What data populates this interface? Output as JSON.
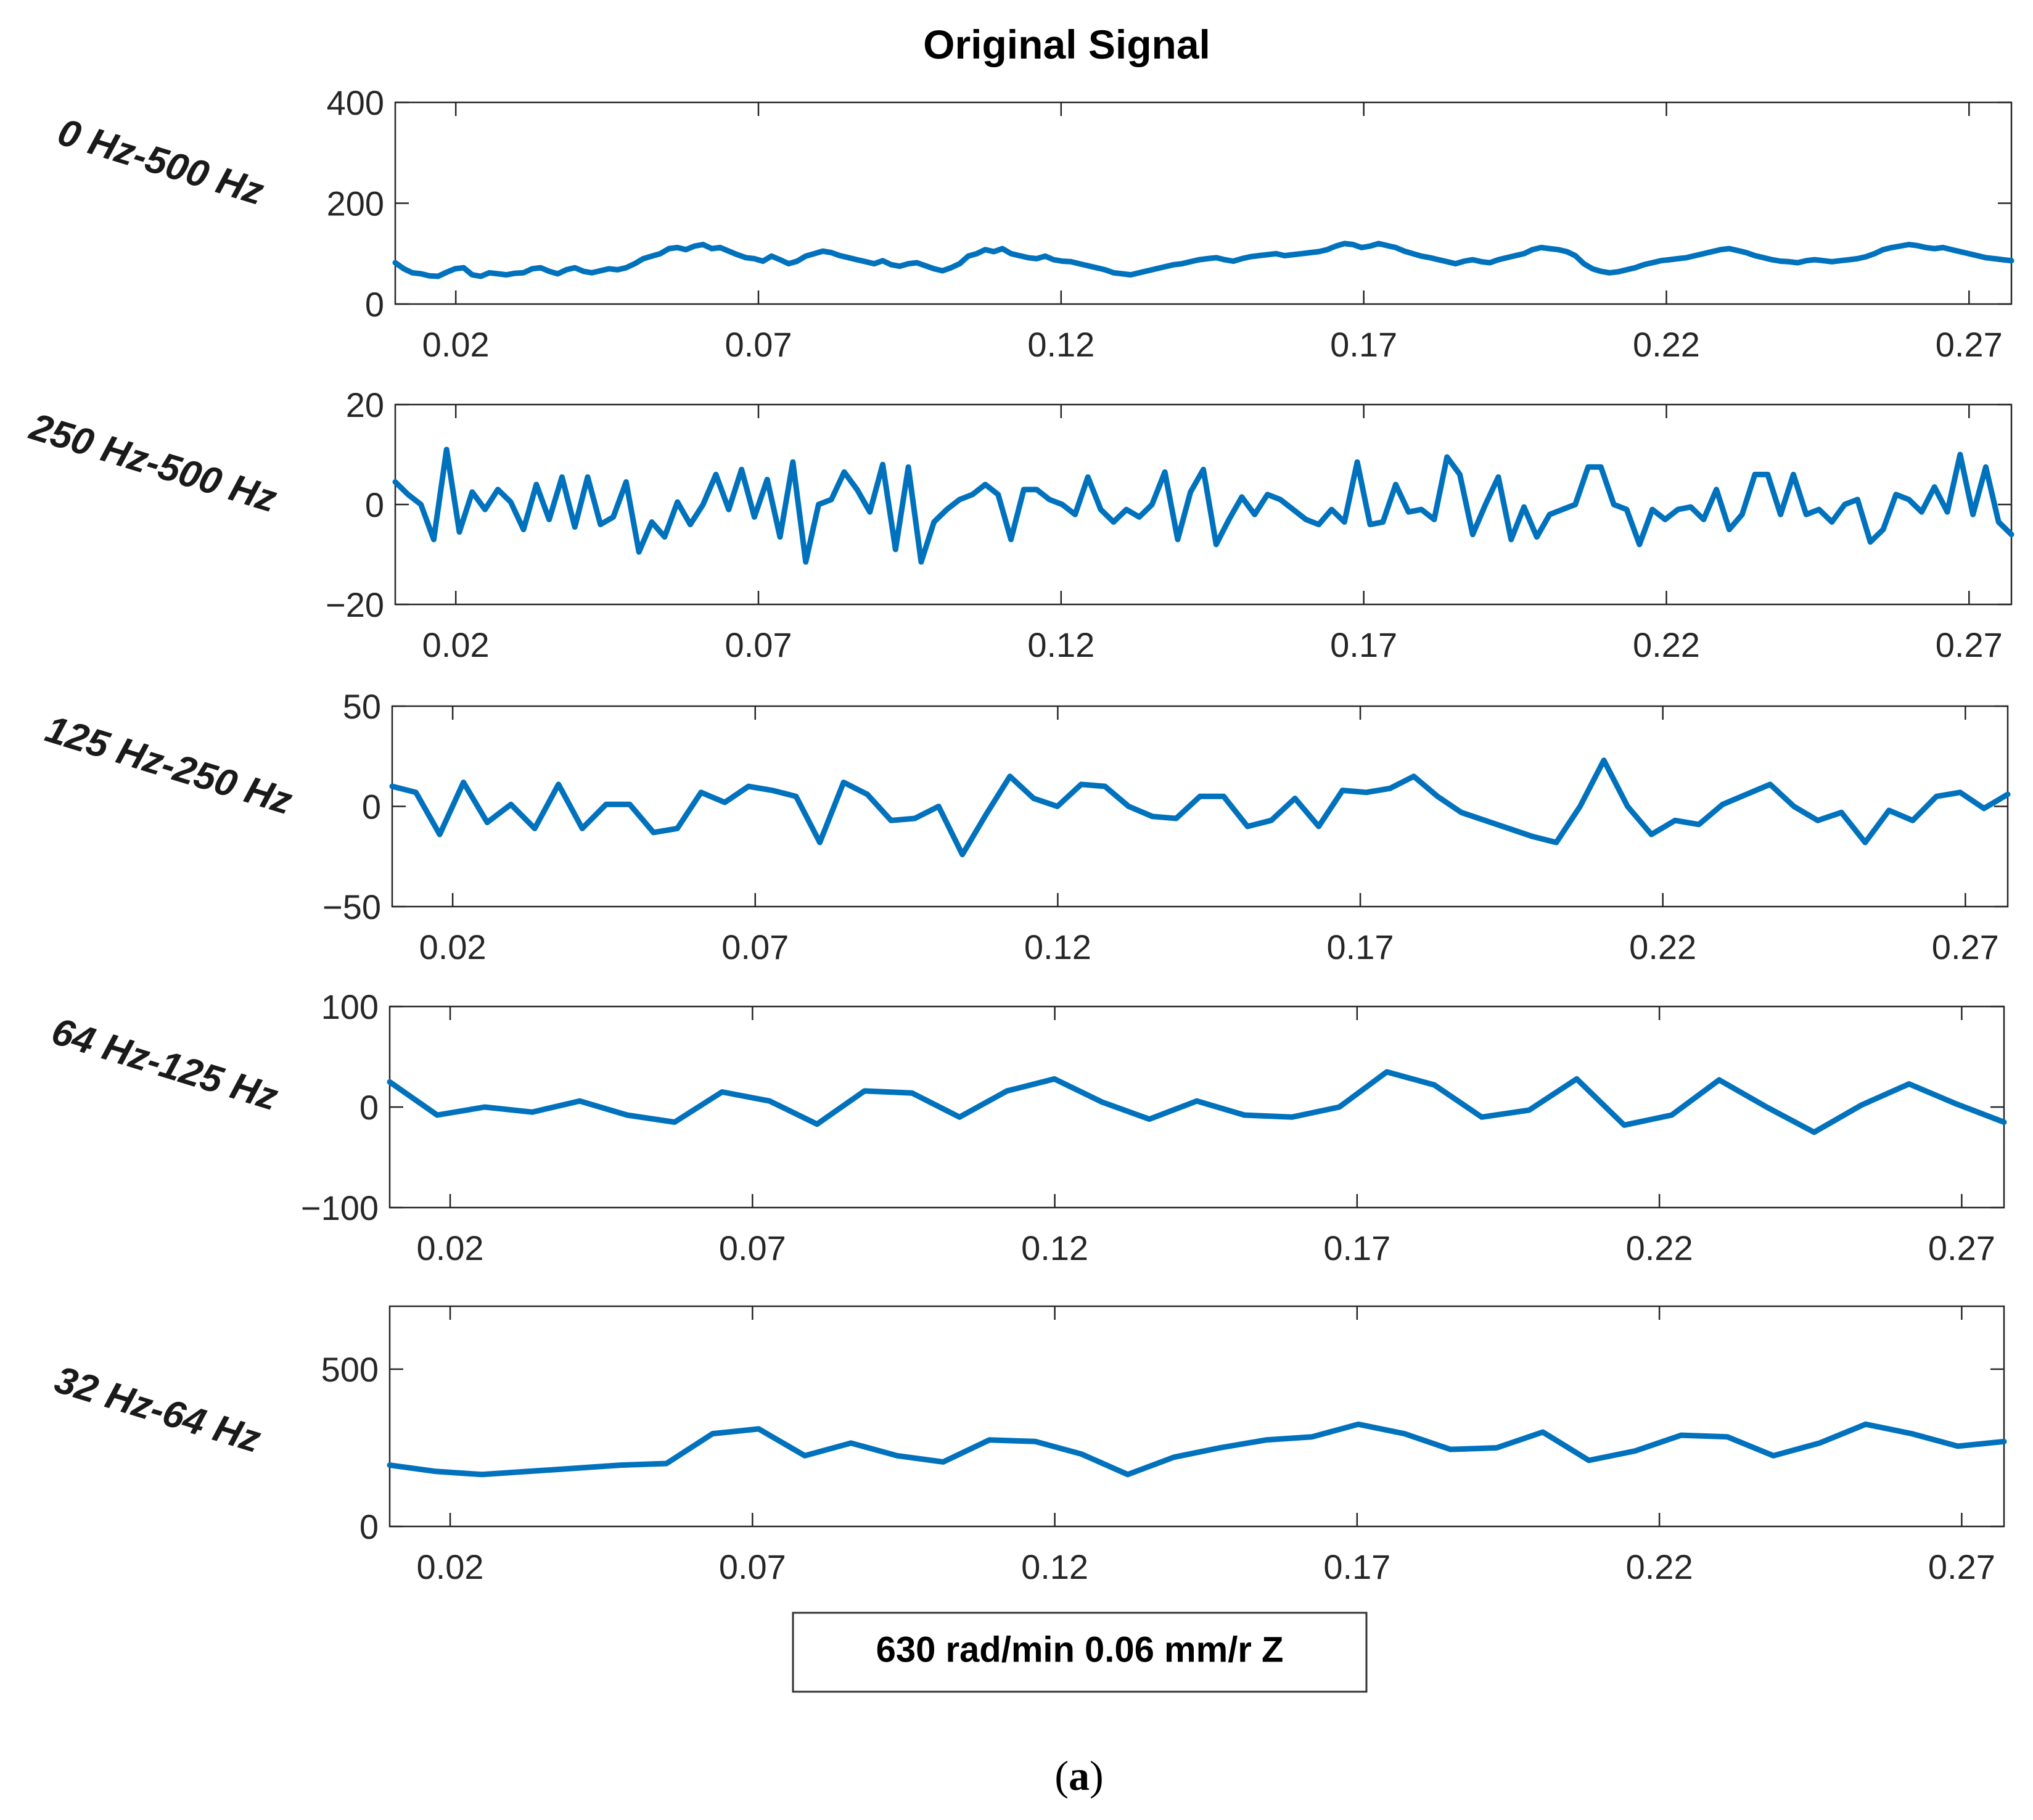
{
  "figure": {
    "title": "Original Signal",
    "legend_text": "630 rad/min 0.06 mm/r Z",
    "caption_open": "(",
    "caption_letter": "a",
    "caption_close": ")",
    "line_color": "#0072BD"
  },
  "chart_data": [
    {
      "type": "line",
      "band_label": "0 Hz-500 Hz",
      "xlim": [
        0.01,
        0.277
      ],
      "x_ticks": [
        0.02,
        0.07,
        0.12,
        0.17,
        0.22,
        0.27
      ],
      "x_tick_labels": [
        "0.02",
        "0.07",
        "0.12",
        "0.17",
        "0.22",
        "0.27"
      ],
      "ylim": [
        0,
        400
      ],
      "y_ticks": [
        0,
        200,
        400
      ],
      "y_tick_labels": [
        "0",
        "200",
        "400"
      ],
      "x_start": 0.01,
      "x_end": 0.277,
      "values": [
        82,
        70,
        62,
        60,
        56,
        55,
        63,
        70,
        72,
        58,
        55,
        62,
        60,
        58,
        61,
        62,
        70,
        72,
        65,
        60,
        68,
        72,
        65,
        62,
        66,
        70,
        68,
        72,
        80,
        90,
        95,
        100,
        110,
        112,
        108,
        115,
        118,
        110,
        112,
        105,
        98,
        92,
        90,
        85,
        95,
        88,
        80,
        85,
        95,
        100,
        105,
        102,
        96,
        92,
        88,
        84,
        80,
        86,
        78,
        75,
        80,
        82,
        76,
        70,
        66,
        72,
        80,
        95,
        100,
        108,
        104,
        110,
        100,
        96,
        92,
        90,
        95,
        88,
        85,
        84,
        80,
        76,
        72,
        68,
        62,
        60,
        58,
        62,
        66,
        70,
        74,
        78,
        80,
        84,
        88,
        90,
        92,
        88,
        85,
        90,
        94,
        96,
        98,
        100,
        96,
        98,
        100,
        102,
        104,
        108,
        115,
        120,
        118,
        112,
        115,
        120,
        116,
        112,
        105,
        100,
        95,
        92,
        88,
        84,
        80,
        85,
        88,
        84,
        82,
        88,
        92,
        96,
        100,
        108,
        112,
        110,
        108,
        104,
        96,
        80,
        70,
        65,
        62,
        64,
        68,
        72,
        78,
        82,
        86,
        88,
        90,
        92,
        96,
        100,
        104,
        108,
        110,
        106,
        102,
        96,
        92,
        88,
        85,
        84,
        82,
        86,
        88,
        86,
        84,
        86,
        88,
        90,
        94,
        100,
        108,
        112,
        115,
        118,
        116,
        112,
        110,
        112,
        108,
        104,
        100,
        96,
        92,
        90,
        88,
        86
      ]
    },
    {
      "type": "line",
      "band_label": "250 Hz-500 Hz",
      "xlim": [
        0.01,
        0.277
      ],
      "x_ticks": [
        0.02,
        0.07,
        0.12,
        0.17,
        0.22,
        0.27
      ],
      "x_tick_labels": [
        "0.02",
        "0.07",
        "0.12",
        "0.17",
        "0.22",
        "0.27"
      ],
      "ylim": [
        -20,
        20
      ],
      "y_ticks": [
        -20,
        0,
        20
      ],
      "y_tick_labels": [
        "−20",
        "0",
        "20"
      ],
      "x_start": 0.01,
      "x_end": 0.277,
      "values": [
        4.5,
        2,
        0,
        -7,
        11,
        -5.5,
        2.5,
        -1,
        3,
        0.5,
        -5,
        4,
        -3,
        5.5,
        -4.5,
        5.5,
        -4,
        -2.5,
        4.5,
        -9.5,
        -3.5,
        -6.5,
        0.5,
        -4,
        0,
        6,
        -1,
        7,
        -2.5,
        5,
        -6.5,
        8.5,
        -11.5,
        0,
        1,
        6.5,
        3,
        -1.5,
        8,
        -9,
        7.5,
        -11.5,
        -3.5,
        -1,
        1,
        2,
        4,
        2,
        -7,
        3,
        3,
        1,
        0,
        -2,
        5.5,
        -1,
        -3.5,
        -1,
        -2.5,
        0,
        6.5,
        -7,
        2.5,
        7,
        -8,
        -3,
        1.5,
        -2,
        2,
        1,
        -1,
        -3,
        -4,
        -1,
        -3.5,
        8.5,
        -4,
        -3.5,
        4,
        -1.5,
        -1,
        -3,
        9.5,
        6,
        -6,
        0,
        5.5,
        -7,
        -0.5,
        -6.5,
        -2,
        -1,
        0,
        7.5,
        7.5,
        0,
        -1,
        -8,
        -1,
        -3,
        -1,
        -0.5,
        -3,
        3,
        -5,
        -2,
        6,
        6,
        -2,
        6,
        -2,
        -1,
        -3.5,
        0,
        1,
        -7.5,
        -5,
        2,
        1,
        -1.5,
        3.5,
        -1.5,
        10,
        -2,
        7.5,
        -3.5,
        -6
      ]
    },
    {
      "type": "line",
      "band_label": "125 Hz-250 Hz",
      "xlim": [
        0.01,
        0.277
      ],
      "x_ticks": [
        0.02,
        0.07,
        0.12,
        0.17,
        0.22,
        0.27
      ],
      "x_tick_labels": [
        "0.02",
        "0.07",
        "0.12",
        "0.17",
        "0.22",
        "0.27"
      ],
      "ylim": [
        -50,
        50
      ],
      "y_ticks": [
        -50,
        0,
        50
      ],
      "y_tick_labels": [
        "−50",
        "0",
        "50"
      ],
      "x_start": 0.01,
      "x_end": 0.277,
      "values": [
        10,
        7,
        -14,
        12,
        -8,
        1,
        -11,
        11,
        -11,
        1,
        1,
        -13,
        -11,
        7,
        2,
        10,
        8,
        5,
        -18,
        12,
        6,
        -7,
        -6,
        0,
        -24,
        -4,
        15,
        4,
        0,
        11,
        10,
        0,
        -5,
        -6,
        5,
        5,
        -10,
        -7,
        4,
        -10,
        8,
        7,
        9,
        15,
        5,
        -3,
        -7,
        -11,
        -15,
        -18,
        0,
        23,
        0,
        -14,
        -7,
        -9,
        1,
        6,
        11,
        0,
        -7,
        -3,
        -18,
        -2,
        -7,
        5,
        7,
        -1,
        6
      ]
    },
    {
      "type": "line",
      "band_label": "64 Hz-125 Hz",
      "xlim": [
        0.01,
        0.277
      ],
      "x_ticks": [
        0.02,
        0.07,
        0.12,
        0.17,
        0.22,
        0.27
      ],
      "x_tick_labels": [
        "0.02",
        "0.07",
        "0.12",
        "0.17",
        "0.22",
        "0.27"
      ],
      "ylim": [
        -100,
        100
      ],
      "y_ticks": [
        -100,
        0,
        100
      ],
      "y_tick_labels": [
        "−100",
        "0",
        "100"
      ],
      "x_start": 0.01,
      "x_end": 0.277,
      "values": [
        25,
        -8,
        0,
        -5,
        6,
        -8,
        -15,
        15,
        6,
        -17,
        16,
        14,
        -10,
        16,
        28,
        5,
        -12,
        6,
        -8,
        -10,
        0,
        35,
        22,
        -10,
        -3,
        28,
        -18,
        -8,
        27,
        0,
        -25,
        2,
        23,
        3,
        -15
      ]
    },
    {
      "type": "line",
      "band_label": "32 Hz-64 Hz",
      "xlim": [
        0.01,
        0.277
      ],
      "x_ticks": [
        0.02,
        0.07,
        0.12,
        0.17,
        0.22,
        0.27
      ],
      "x_tick_labels": [
        "0.02",
        "0.07",
        "0.12",
        "0.17",
        "0.22",
        "0.27"
      ],
      "ylim": [
        0,
        700
      ],
      "y_ticks": [
        0,
        500
      ],
      "y_tick_labels": [
        "0",
        "500"
      ],
      "x_start": 0.01,
      "x_end": 0.277,
      "values": [
        195,
        175,
        165,
        175,
        185,
        195,
        200,
        295,
        310,
        225,
        265,
        225,
        205,
        275,
        270,
        230,
        165,
        220,
        250,
        275,
        285,
        325,
        295,
        245,
        250,
        300,
        210,
        240,
        290,
        285,
        225,
        265,
        325,
        295,
        255,
        270
      ]
    }
  ]
}
